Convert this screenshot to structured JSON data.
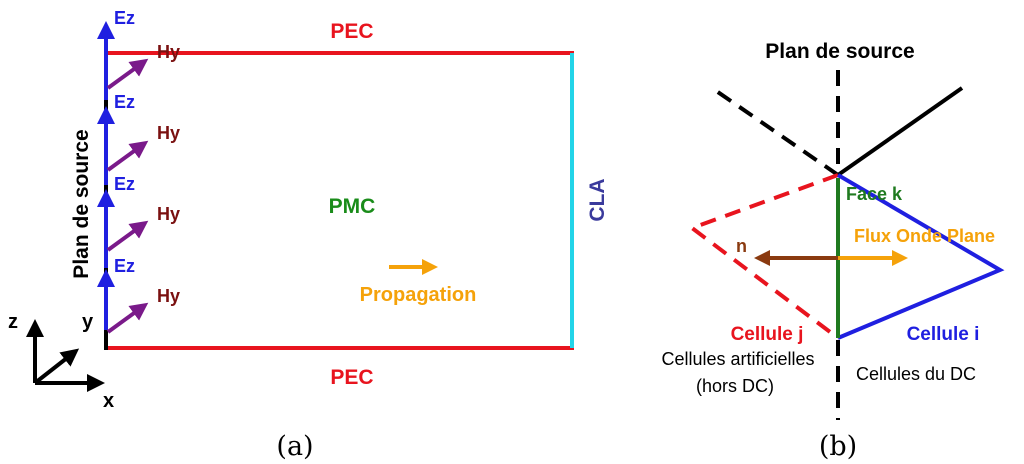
{
  "colors": {
    "pec": "#e8141e",
    "pmc": "#1a8c1a",
    "cla_line": "#22d4e8",
    "cla_text": "#3a3a9c",
    "ez": "#1f1fe0",
    "hy_arrow": "#7a1a8a",
    "hy_text": "#7a1010",
    "propagation": "#f5a20a",
    "black": "#000000",
    "face_green": "#1f7a1f",
    "cellule_blue": "#1f1fe0",
    "cellule_red": "#e8141e",
    "normal_brown": "#8a3a10",
    "flux_orange": "#f5a20a"
  },
  "panel_a": {
    "pec_top": "PEC",
    "pec_bottom": "PEC",
    "pmc": "PMC",
    "cla": "CLA",
    "source_plane": "Plan de source",
    "ez_labels": [
      "Ez",
      "Ez",
      "Ez",
      "Ez"
    ],
    "hy_labels": [
      "Hy",
      "Hy",
      "Hy",
      "Hy"
    ],
    "propagation": "Propagation",
    "axis_z": "z",
    "axis_y": "y",
    "axis_x": "x",
    "caption": "(a)"
  },
  "panel_b": {
    "title": "Plan de source",
    "face": "Face k",
    "flux": "Flux Onde Plane",
    "normal": "n",
    "cellule_j": "Cellule j",
    "cellule_i": "Cellule i",
    "artificial_line1": "Cellules artificielles",
    "artificial_line2": "(hors DC)",
    "dc_cells": "Cellules du DC",
    "caption": "(b)"
  }
}
